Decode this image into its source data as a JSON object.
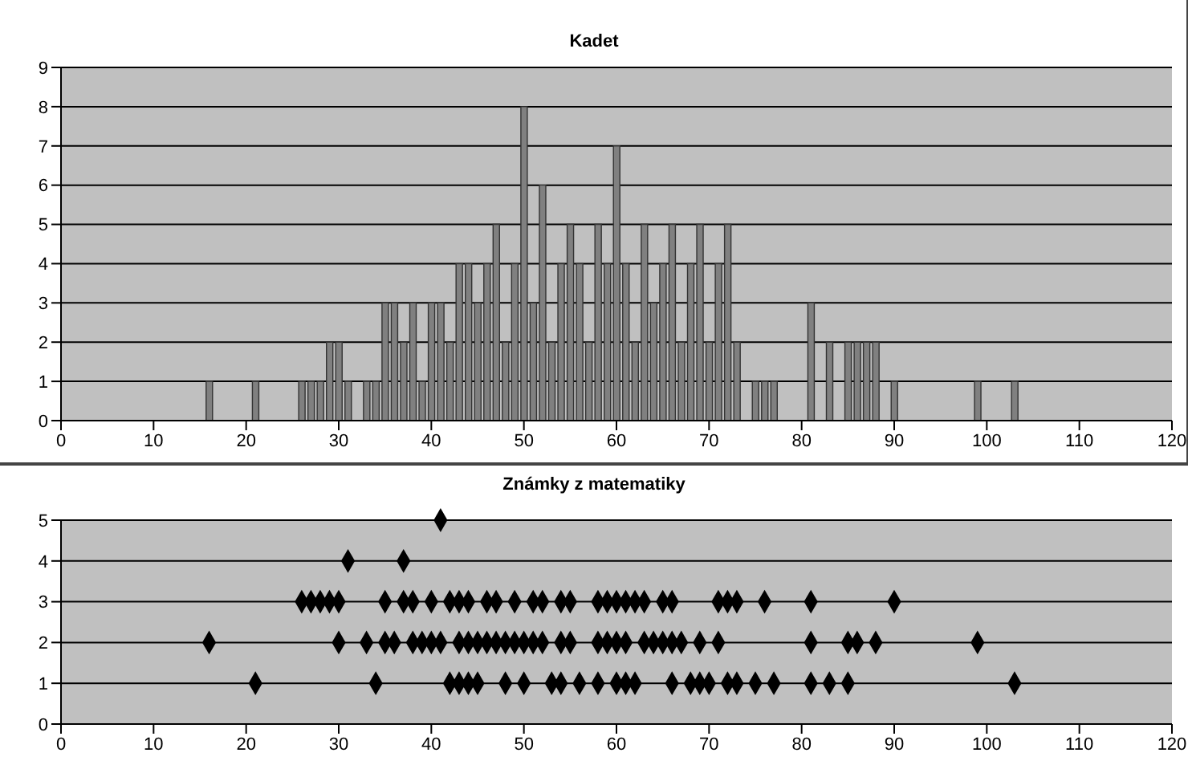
{
  "chart_data": [
    {
      "type": "bar",
      "title": "Kadet",
      "x": [
        16,
        21,
        26,
        27,
        28,
        29,
        30,
        31,
        33,
        34,
        35,
        36,
        37,
        38,
        39,
        40,
        41,
        42,
        43,
        44,
        45,
        46,
        47,
        48,
        49,
        50,
        51,
        52,
        53,
        54,
        55,
        56,
        57,
        58,
        59,
        60,
        61,
        62,
        63,
        64,
        65,
        66,
        67,
        68,
        69,
        70,
        71,
        72,
        73,
        75,
        76,
        77,
        81,
        83,
        85,
        86,
        87,
        88,
        90,
        99,
        103
      ],
      "values": [
        1,
        1,
        1,
        1,
        1,
        2,
        2,
        1,
        1,
        1,
        3,
        3,
        2,
        3,
        1,
        3,
        3,
        2,
        4,
        4,
        3,
        4,
        5,
        2,
        4,
        8,
        3,
        6,
        2,
        4,
        5,
        4,
        2,
        5,
        4,
        7,
        4,
        2,
        5,
        3,
        4,
        5,
        2,
        4,
        5,
        2,
        4,
        5,
        2,
        1,
        1,
        1,
        3,
        2,
        2,
        2,
        2,
        2,
        1,
        1,
        1
      ],
      "color": "#808080",
      "xlim": [
        0,
        120
      ],
      "xticks": [
        0,
        10,
        20,
        30,
        40,
        50,
        60,
        70,
        80,
        90,
        100,
        110,
        120
      ],
      "ylim": [
        0,
        9
      ],
      "yticks": [
        0,
        1,
        2,
        3,
        4,
        5,
        6,
        7,
        8,
        9
      ],
      "grid": "y",
      "legend": false
    },
    {
      "type": "scatter",
      "title": "Známky z matematiky",
      "x": [
        41,
        31,
        37,
        26,
        27,
        28,
        29,
        30,
        35,
        37,
        38,
        40,
        42,
        43,
        44,
        46,
        47,
        49,
        51,
        52,
        54,
        55,
        58,
        59,
        60,
        61,
        62,
        63,
        65,
        66,
        71,
        72,
        73,
        76,
        81,
        90,
        16,
        30,
        33,
        35,
        36,
        38,
        39,
        40,
        41,
        43,
        44,
        45,
        46,
        47,
        48,
        49,
        50,
        51,
        52,
        54,
        55,
        58,
        59,
        60,
        61,
        63,
        64,
        65,
        66,
        67,
        69,
        71,
        81,
        85,
        86,
        88,
        99,
        21,
        34,
        42,
        43,
        44,
        45,
        48,
        50,
        53,
        54,
        56,
        58,
        60,
        61,
        62,
        66,
        68,
        69,
        70,
        72,
        73,
        75,
        77,
        81,
        83,
        85,
        103
      ],
      "values": [
        5,
        4,
        4,
        3,
        3,
        3,
        3,
        3,
        3,
        3,
        3,
        3,
        3,
        3,
        3,
        3,
        3,
        3,
        3,
        3,
        3,
        3,
        3,
        3,
        3,
        3,
        3,
        3,
        3,
        3,
        3,
        3,
        3,
        3,
        3,
        3,
        2,
        2,
        2,
        2,
        2,
        2,
        2,
        2,
        2,
        2,
        2,
        2,
        2,
        2,
        2,
        2,
        2,
        2,
        2,
        2,
        2,
        2,
        2,
        2,
        2,
        2,
        2,
        2,
        2,
        2,
        2,
        2,
        2,
        2,
        2,
        2,
        2,
        1,
        1,
        1,
        1,
        1,
        1,
        1,
        1,
        1,
        1,
        1,
        1,
        1,
        1,
        1,
        1,
        1,
        1,
        1,
        1,
        1,
        1,
        1,
        1,
        1,
        1,
        1
      ],
      "color": "#000000",
      "marker": "diamond",
      "xlim": [
        0,
        120
      ],
      "xticks": [
        0,
        10,
        20,
        30,
        40,
        50,
        60,
        70,
        80,
        90,
        100,
        110,
        120
      ],
      "ylim": [
        0,
        5
      ],
      "yticks": [
        0,
        1,
        2,
        3,
        4,
        5
      ],
      "grid": "y",
      "legend": false
    }
  ]
}
